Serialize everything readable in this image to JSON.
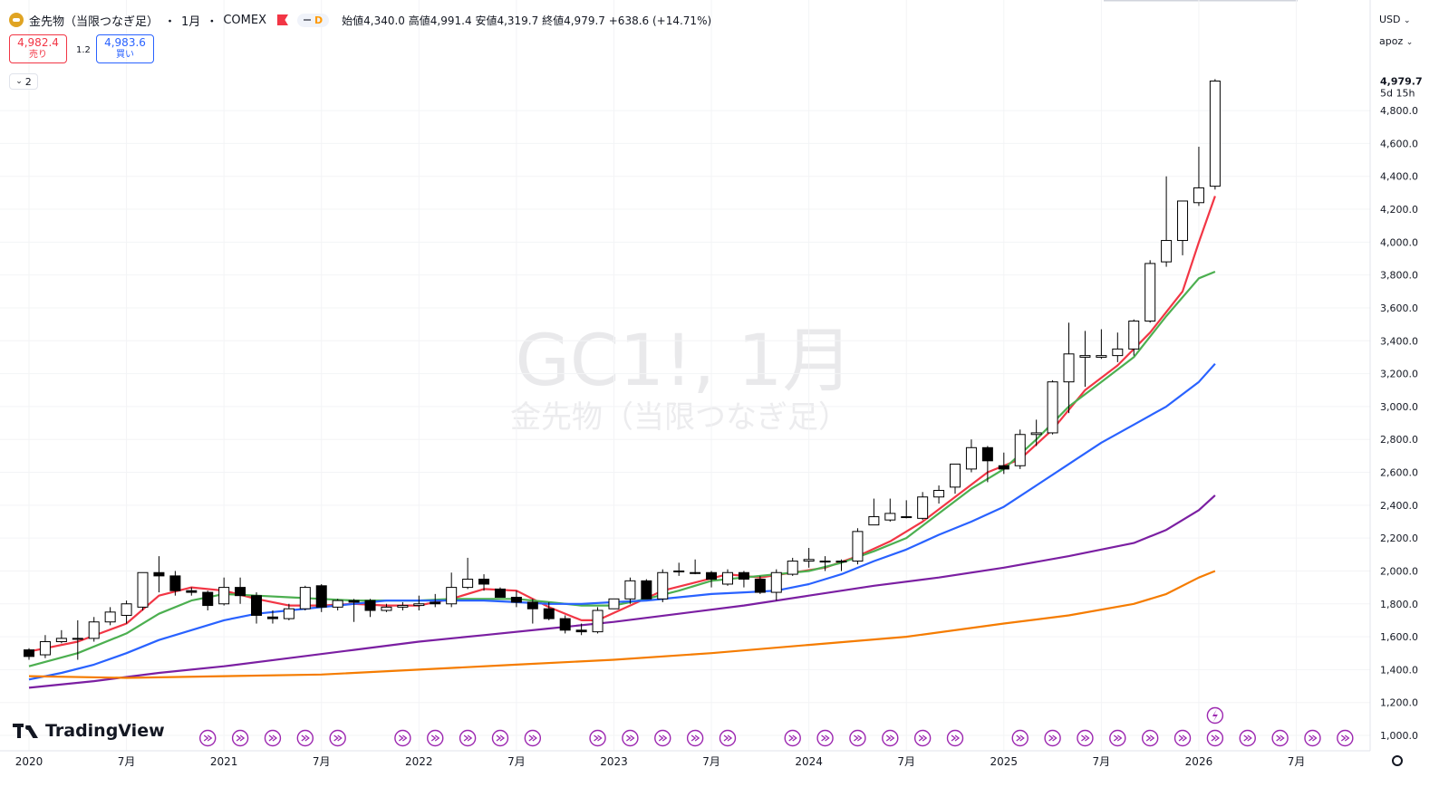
{
  "header": {
    "symbol_name": "金先物（当限つなぎ足）",
    "separator1": "・",
    "interval": "1月",
    "separator2": "・",
    "exchange": "COMEX",
    "pill_letter": "D",
    "open_label": "始値",
    "open": "4,340.0",
    "high_label": "高値",
    "high": "4,991.4",
    "low_label": "安値",
    "low": "4,319.7",
    "close_label": "終値",
    "close": "4,979.7",
    "change": "+638.6 (+14.71%)"
  },
  "trade": {
    "sell_price": "4,982.4",
    "sell_label": "売り",
    "spread": "1.2",
    "buy_price": "4,983.6",
    "buy_label": "買い"
  },
  "indicators_toggle": {
    "count": "2"
  },
  "right_panel": {
    "currency": "USD",
    "scale_mode": "apoz"
  },
  "watermark": {
    "line1": "GC1!, 1月",
    "line2": "金先物（当限つなぎ足）"
  },
  "brand": {
    "name": "TradingView"
  },
  "colors": {
    "up_body": "#ffffff",
    "down_body": "#000000",
    "candle_border": "#000000",
    "ma1": "#f23645",
    "ma2": "#4caf50",
    "ma3": "#2962ff",
    "ma4": "#7b1fa2",
    "ma5": "#f57c00",
    "event_icon": "#9c27b0"
  },
  "chart_data": {
    "type": "candlestick",
    "price_axis": {
      "ticks": [
        "1,000.0",
        "1,200.0",
        "1,400.0",
        "1,600.0",
        "1,800.0",
        "2,000.0",
        "2,200.0",
        "2,400.0",
        "2,600.0",
        "2,800.0",
        "3,000.0",
        "3,200.0",
        "3,400.0",
        "3,600.0",
        "3,800.0",
        "4,000.0",
        "4,200.0",
        "4,400.0",
        "4,600.0",
        "4,800.0"
      ],
      "last_price_label": "4,979.7",
      "countdown_label": "5d 15h",
      "range": [
        900,
        5300
      ]
    },
    "time_axis": {
      "ticks": [
        "2020",
        "7月",
        "2021",
        "7月",
        "2022",
        "7月",
        "2023",
        "7月",
        "2024",
        "7月",
        "2025",
        "7月",
        "2026",
        "7月"
      ],
      "tick_months": [
        0,
        6,
        12,
        18,
        24,
        30,
        36,
        42,
        48,
        54,
        60,
        66,
        72,
        78
      ]
    },
    "candles": [
      {
        "t": 0,
        "o": 1520,
        "h": 1530,
        "l": 1460,
        "c": 1480
      },
      {
        "t": 1,
        "o": 1490,
        "h": 1610,
        "l": 1470,
        "c": 1570
      },
      {
        "t": 2,
        "o": 1570,
        "h": 1640,
        "l": 1560,
        "c": 1590
      },
      {
        "t": 3,
        "o": 1590,
        "h": 1700,
        "l": 1460,
        "c": 1590
      },
      {
        "t": 4,
        "o": 1590,
        "h": 1720,
        "l": 1570,
        "c": 1690
      },
      {
        "t": 5,
        "o": 1690,
        "h": 1780,
        "l": 1670,
        "c": 1750
      },
      {
        "t": 6,
        "o": 1730,
        "h": 1820,
        "l": 1680,
        "c": 1800
      },
      {
        "t": 7,
        "o": 1780,
        "h": 1990,
        "l": 1760,
        "c": 1990
      },
      {
        "t": 8,
        "o": 1990,
        "h": 2090,
        "l": 1870,
        "c": 1970
      },
      {
        "t": 9,
        "o": 1970,
        "h": 2000,
        "l": 1850,
        "c": 1880
      },
      {
        "t": 10,
        "o": 1880,
        "h": 1900,
        "l": 1850,
        "c": 1870
      },
      {
        "t": 11,
        "o": 1870,
        "h": 1880,
        "l": 1760,
        "c": 1790
      },
      {
        "t": 12,
        "o": 1800,
        "h": 1960,
        "l": 1790,
        "c": 1900
      },
      {
        "t": 13,
        "o": 1900,
        "h": 1960,
        "l": 1800,
        "c": 1850
      },
      {
        "t": 14,
        "o": 1850,
        "h": 1870,
        "l": 1680,
        "c": 1730
      },
      {
        "t": 15,
        "o": 1720,
        "h": 1760,
        "l": 1680,
        "c": 1710
      },
      {
        "t": 16,
        "o": 1710,
        "h": 1800,
        "l": 1700,
        "c": 1770
      },
      {
        "t": 17,
        "o": 1770,
        "h": 1910,
        "l": 1760,
        "c": 1900
      },
      {
        "t": 18,
        "o": 1910,
        "h": 1920,
        "l": 1750,
        "c": 1780
      },
      {
        "t": 19,
        "o": 1780,
        "h": 1830,
        "l": 1760,
        "c": 1820
      },
      {
        "t": 20,
        "o": 1820,
        "h": 1830,
        "l": 1690,
        "c": 1810
      },
      {
        "t": 21,
        "o": 1820,
        "h": 1830,
        "l": 1720,
        "c": 1760
      },
      {
        "t": 22,
        "o": 1760,
        "h": 1800,
        "l": 1750,
        "c": 1780
      },
      {
        "t": 23,
        "o": 1780,
        "h": 1810,
        "l": 1760,
        "c": 1790
      },
      {
        "t": 24,
        "o": 1790,
        "h": 1850,
        "l": 1760,
        "c": 1800
      },
      {
        "t": 25,
        "o": 1810,
        "h": 1860,
        "l": 1780,
        "c": 1800
      },
      {
        "t": 26,
        "o": 1800,
        "h": 1990,
        "l": 1780,
        "c": 1900
      },
      {
        "t": 27,
        "o": 1900,
        "h": 2080,
        "l": 1890,
        "c": 1950
      },
      {
        "t": 28,
        "o": 1950,
        "h": 1980,
        "l": 1880,
        "c": 1920
      },
      {
        "t": 29,
        "o": 1890,
        "h": 1900,
        "l": 1850,
        "c": 1840
      },
      {
        "t": 30,
        "o": 1840,
        "h": 1880,
        "l": 1780,
        "c": 1810
      },
      {
        "t": 31,
        "o": 1810,
        "h": 1830,
        "l": 1680,
        "c": 1770
      },
      {
        "t": 32,
        "o": 1770,
        "h": 1810,
        "l": 1700,
        "c": 1710
      },
      {
        "t": 33,
        "o": 1710,
        "h": 1730,
        "l": 1620,
        "c": 1640
      },
      {
        "t": 34,
        "o": 1640,
        "h": 1680,
        "l": 1610,
        "c": 1630
      },
      {
        "t": 35,
        "o": 1630,
        "h": 1780,
        "l": 1620,
        "c": 1760
      },
      {
        "t": 36,
        "o": 1770,
        "h": 1830,
        "l": 1770,
        "c": 1830
      },
      {
        "t": 37,
        "o": 1830,
        "h": 1960,
        "l": 1800,
        "c": 1940
      },
      {
        "t": 38,
        "o": 1940,
        "h": 1950,
        "l": 1830,
        "c": 1830
      },
      {
        "t": 39,
        "o": 1830,
        "h": 2010,
        "l": 1810,
        "c": 1990
      },
      {
        "t": 40,
        "o": 2000,
        "h": 2050,
        "l": 1970,
        "c": 2000
      },
      {
        "t": 41,
        "o": 1990,
        "h": 2070,
        "l": 1980,
        "c": 1990
      },
      {
        "t": 42,
        "o": 1990,
        "h": 2000,
        "l": 1900,
        "c": 1950
      },
      {
        "t": 43,
        "o": 1920,
        "h": 2010,
        "l": 1910,
        "c": 1990
      },
      {
        "t": 44,
        "o": 1990,
        "h": 2000,
        "l": 1900,
        "c": 1950
      },
      {
        "t": 45,
        "o": 1950,
        "h": 1970,
        "l": 1860,
        "c": 1870
      },
      {
        "t": 46,
        "o": 1870,
        "h": 2010,
        "l": 1820,
        "c": 1990
      },
      {
        "t": 47,
        "o": 1980,
        "h": 2080,
        "l": 1970,
        "c": 2060
      },
      {
        "t": 48,
        "o": 2060,
        "h": 2140,
        "l": 2020,
        "c": 2070
      },
      {
        "t": 49,
        "o": 2060,
        "h": 2090,
        "l": 2000,
        "c": 2060
      },
      {
        "t": 50,
        "o": 2060,
        "h": 2070,
        "l": 2000,
        "c": 2060
      },
      {
        "t": 51,
        "o": 2060,
        "h": 2260,
        "l": 2040,
        "c": 2240
      },
      {
        "t": 52,
        "o": 2280,
        "h": 2440,
        "l": 2280,
        "c": 2330
      },
      {
        "t": 53,
        "o": 2310,
        "h": 2440,
        "l": 2300,
        "c": 2350
      },
      {
        "t": 54,
        "o": 2330,
        "h": 2430,
        "l": 2320,
        "c": 2330
      },
      {
        "t": 55,
        "o": 2320,
        "h": 2480,
        "l": 2310,
        "c": 2450
      },
      {
        "t": 56,
        "o": 2450,
        "h": 2520,
        "l": 2410,
        "c": 2490
      },
      {
        "t": 57,
        "o": 2510,
        "h": 2630,
        "l": 2470,
        "c": 2650
      },
      {
        "t": 58,
        "o": 2620,
        "h": 2800,
        "l": 2600,
        "c": 2750
      },
      {
        "t": 59,
        "o": 2750,
        "h": 2760,
        "l": 2540,
        "c": 2670
      },
      {
        "t": 60,
        "o": 2640,
        "h": 2720,
        "l": 2590,
        "c": 2620
      },
      {
        "t": 61,
        "o": 2640,
        "h": 2860,
        "l": 2620,
        "c": 2830
      },
      {
        "t": 62,
        "o": 2830,
        "h": 2920,
        "l": 2760,
        "c": 2840
      },
      {
        "t": 63,
        "o": 2840,
        "h": 3160,
        "l": 2830,
        "c": 3150
      },
      {
        "t": 64,
        "o": 3150,
        "h": 3510,
        "l": 2960,
        "c": 3320
      },
      {
        "t": 65,
        "o": 3300,
        "h": 3460,
        "l": 3120,
        "c": 3310
      },
      {
        "t": 66,
        "o": 3300,
        "h": 3470,
        "l": 3290,
        "c": 3310
      },
      {
        "t": 67,
        "o": 3310,
        "h": 3450,
        "l": 3270,
        "c": 3350
      },
      {
        "t": 68,
        "o": 3350,
        "h": 3530,
        "l": 3310,
        "c": 3520
      },
      {
        "t": 69,
        "o": 3520,
        "h": 3890,
        "l": 3510,
        "c": 3870
      },
      {
        "t": 70,
        "o": 3880,
        "h": 4400,
        "l": 3850,
        "c": 4010
      },
      {
        "t": 71,
        "o": 4010,
        "h": 4250,
        "l": 3920,
        "c": 4250
      },
      {
        "t": 72,
        "o": 4240,
        "h": 4580,
        "l": 4220,
        "c": 4330
      },
      {
        "t": 73,
        "o": 4340.0,
        "h": 4991.4,
        "l": 4319.7,
        "c": 4979.7
      }
    ],
    "moving_averages": [
      {
        "color_key": "ma1",
        "points": [
          [
            0,
            1510
          ],
          [
            3,
            1570
          ],
          [
            6,
            1680
          ],
          [
            8,
            1850
          ],
          [
            10,
            1900
          ],
          [
            12,
            1880
          ],
          [
            14,
            1830
          ],
          [
            16,
            1790
          ],
          [
            18,
            1790
          ],
          [
            20,
            1800
          ],
          [
            22,
            1790
          ],
          [
            24,
            1790
          ],
          [
            26,
            1830
          ],
          [
            28,
            1890
          ],
          [
            30,
            1880
          ],
          [
            32,
            1780
          ],
          [
            34,
            1700
          ],
          [
            35,
            1700
          ],
          [
            37,
            1790
          ],
          [
            39,
            1880
          ],
          [
            41,
            1930
          ],
          [
            43,
            1980
          ],
          [
            45,
            1960
          ],
          [
            47,
            1990
          ],
          [
            49,
            2020
          ],
          [
            51,
            2090
          ],
          [
            53,
            2180
          ],
          [
            55,
            2300
          ],
          [
            57,
            2450
          ],
          [
            59,
            2600
          ],
          [
            61,
            2680
          ],
          [
            63,
            2860
          ],
          [
            65,
            3100
          ],
          [
            67,
            3250
          ],
          [
            69,
            3450
          ],
          [
            71,
            3700
          ],
          [
            72,
            4000
          ],
          [
            73,
            4280
          ]
        ]
      },
      {
        "color_key": "ma2",
        "points": [
          [
            0,
            1420
          ],
          [
            3,
            1500
          ],
          [
            6,
            1620
          ],
          [
            8,
            1740
          ],
          [
            10,
            1820
          ],
          [
            12,
            1860
          ],
          [
            14,
            1850
          ],
          [
            16,
            1840
          ],
          [
            18,
            1830
          ],
          [
            20,
            1820
          ],
          [
            22,
            1820
          ],
          [
            24,
            1820
          ],
          [
            26,
            1830
          ],
          [
            28,
            1830
          ],
          [
            30,
            1830
          ],
          [
            32,
            1810
          ],
          [
            34,
            1790
          ],
          [
            36,
            1790
          ],
          [
            38,
            1830
          ],
          [
            40,
            1880
          ],
          [
            42,
            1940
          ],
          [
            44,
            1960
          ],
          [
            46,
            1980
          ],
          [
            48,
            2000
          ],
          [
            50,
            2050
          ],
          [
            52,
            2120
          ],
          [
            54,
            2200
          ],
          [
            56,
            2350
          ],
          [
            58,
            2500
          ],
          [
            60,
            2620
          ],
          [
            62,
            2800
          ],
          [
            64,
            3000
          ],
          [
            66,
            3150
          ],
          [
            68,
            3300
          ],
          [
            70,
            3550
          ],
          [
            72,
            3780
          ],
          [
            73,
            3820
          ]
        ]
      },
      {
        "color_key": "ma3",
        "points": [
          [
            0,
            1340
          ],
          [
            2,
            1380
          ],
          [
            4,
            1430
          ],
          [
            6,
            1500
          ],
          [
            8,
            1580
          ],
          [
            10,
            1640
          ],
          [
            12,
            1700
          ],
          [
            14,
            1740
          ],
          [
            16,
            1760
          ],
          [
            18,
            1780
          ],
          [
            20,
            1800
          ],
          [
            22,
            1820
          ],
          [
            24,
            1820
          ],
          [
            26,
            1820
          ],
          [
            28,
            1820
          ],
          [
            30,
            1810
          ],
          [
            32,
            1800
          ],
          [
            34,
            1800
          ],
          [
            36,
            1810
          ],
          [
            38,
            1820
          ],
          [
            40,
            1840
          ],
          [
            42,
            1860
          ],
          [
            44,
            1870
          ],
          [
            46,
            1880
          ],
          [
            48,
            1920
          ],
          [
            50,
            1980
          ],
          [
            52,
            2060
          ],
          [
            54,
            2130
          ],
          [
            56,
            2220
          ],
          [
            58,
            2300
          ],
          [
            60,
            2390
          ],
          [
            62,
            2520
          ],
          [
            64,
            2650
          ],
          [
            66,
            2780
          ],
          [
            68,
            2890
          ],
          [
            70,
            3000
          ],
          [
            72,
            3150
          ],
          [
            73,
            3260
          ]
        ]
      },
      {
        "color_key": "ma4",
        "points": [
          [
            0,
            1290
          ],
          [
            4,
            1330
          ],
          [
            8,
            1380
          ],
          [
            12,
            1420
          ],
          [
            16,
            1470
          ],
          [
            20,
            1520
          ],
          [
            24,
            1570
          ],
          [
            28,
            1610
          ],
          [
            32,
            1650
          ],
          [
            36,
            1690
          ],
          [
            40,
            1740
          ],
          [
            44,
            1790
          ],
          [
            48,
            1850
          ],
          [
            52,
            1910
          ],
          [
            56,
            1960
          ],
          [
            60,
            2020
          ],
          [
            64,
            2090
          ],
          [
            68,
            2170
          ],
          [
            70,
            2250
          ],
          [
            72,
            2370
          ],
          [
            73,
            2460
          ]
        ]
      },
      {
        "color_key": "ma5",
        "points": [
          [
            0,
            1360
          ],
          [
            6,
            1350
          ],
          [
            12,
            1360
          ],
          [
            18,
            1370
          ],
          [
            24,
            1400
          ],
          [
            30,
            1430
          ],
          [
            36,
            1460
          ],
          [
            42,
            1500
          ],
          [
            48,
            1550
          ],
          [
            54,
            1600
          ],
          [
            60,
            1680
          ],
          [
            64,
            1730
          ],
          [
            68,
            1800
          ],
          [
            70,
            1860
          ],
          [
            72,
            1960
          ],
          [
            73,
            2000
          ]
        ]
      }
    ],
    "event_markers_months": [
      11,
      13,
      15,
      17,
      19,
      23,
      25,
      27,
      29,
      31,
      35,
      37,
      39,
      41,
      43,
      47,
      49,
      51,
      53,
      55,
      57,
      61,
      63,
      65,
      67,
      69,
      71,
      73,
      75,
      77,
      79,
      81
    ],
    "highlight_event_month": 73
  }
}
